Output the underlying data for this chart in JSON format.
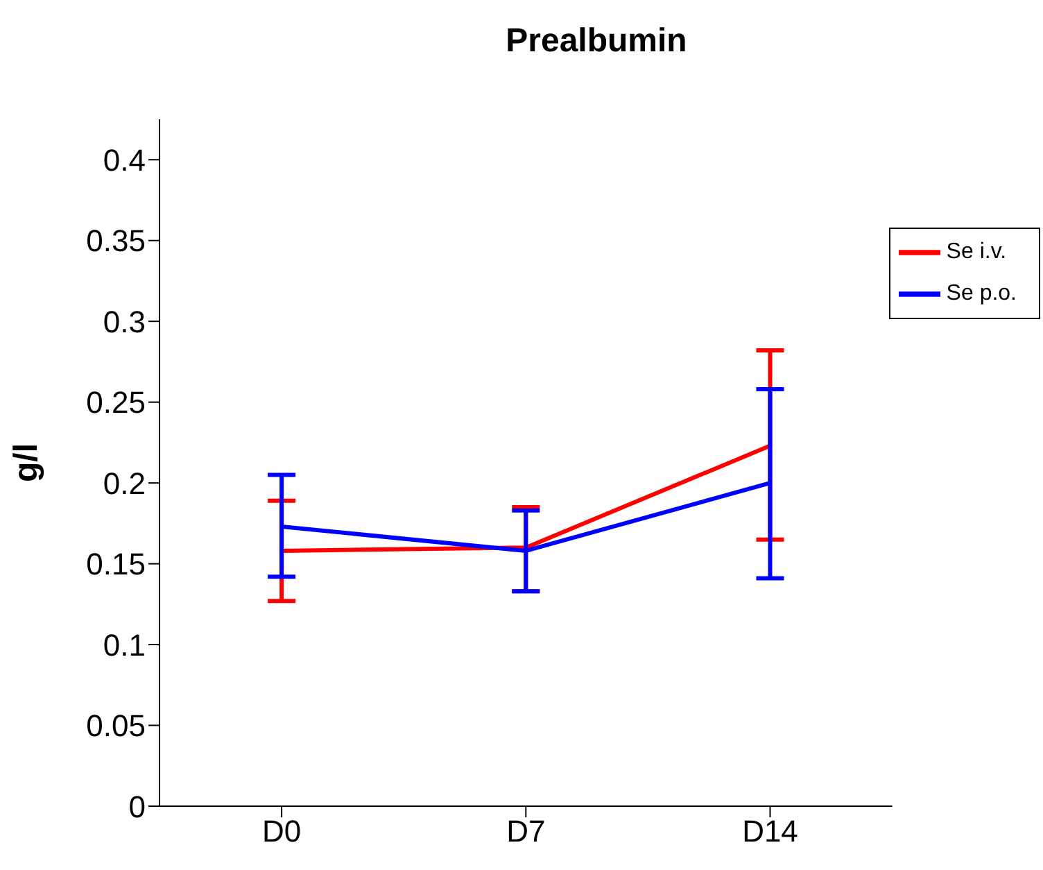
{
  "chart_data": {
    "type": "line",
    "title": "Prealbumin",
    "ylabel": "g/l",
    "categories": [
      "D0",
      "D7",
      "D14"
    ],
    "series": [
      {
        "name": "Se i.v.",
        "color": "#ff0000",
        "values": [
          0.158,
          0.16,
          0.223
        ],
        "errors": [
          [
            0.127,
            0.189
          ],
          [
            0.133,
            0.185
          ],
          [
            0.165,
            0.282
          ]
        ]
      },
      {
        "name": "Se p.o.",
        "color": "#0000ff",
        "values": [
          0.173,
          0.158,
          0.2
        ],
        "errors": [
          [
            0.142,
            0.205
          ],
          [
            0.133,
            0.183
          ],
          [
            0.141,
            0.258
          ]
        ]
      }
    ],
    "ylim": [
      0,
      0.425
    ],
    "yticks": [
      0,
      0.05,
      0.1,
      0.15,
      0.2,
      0.25,
      0.3,
      0.35,
      0.4
    ],
    "legend": "top right",
    "grid": false
  }
}
